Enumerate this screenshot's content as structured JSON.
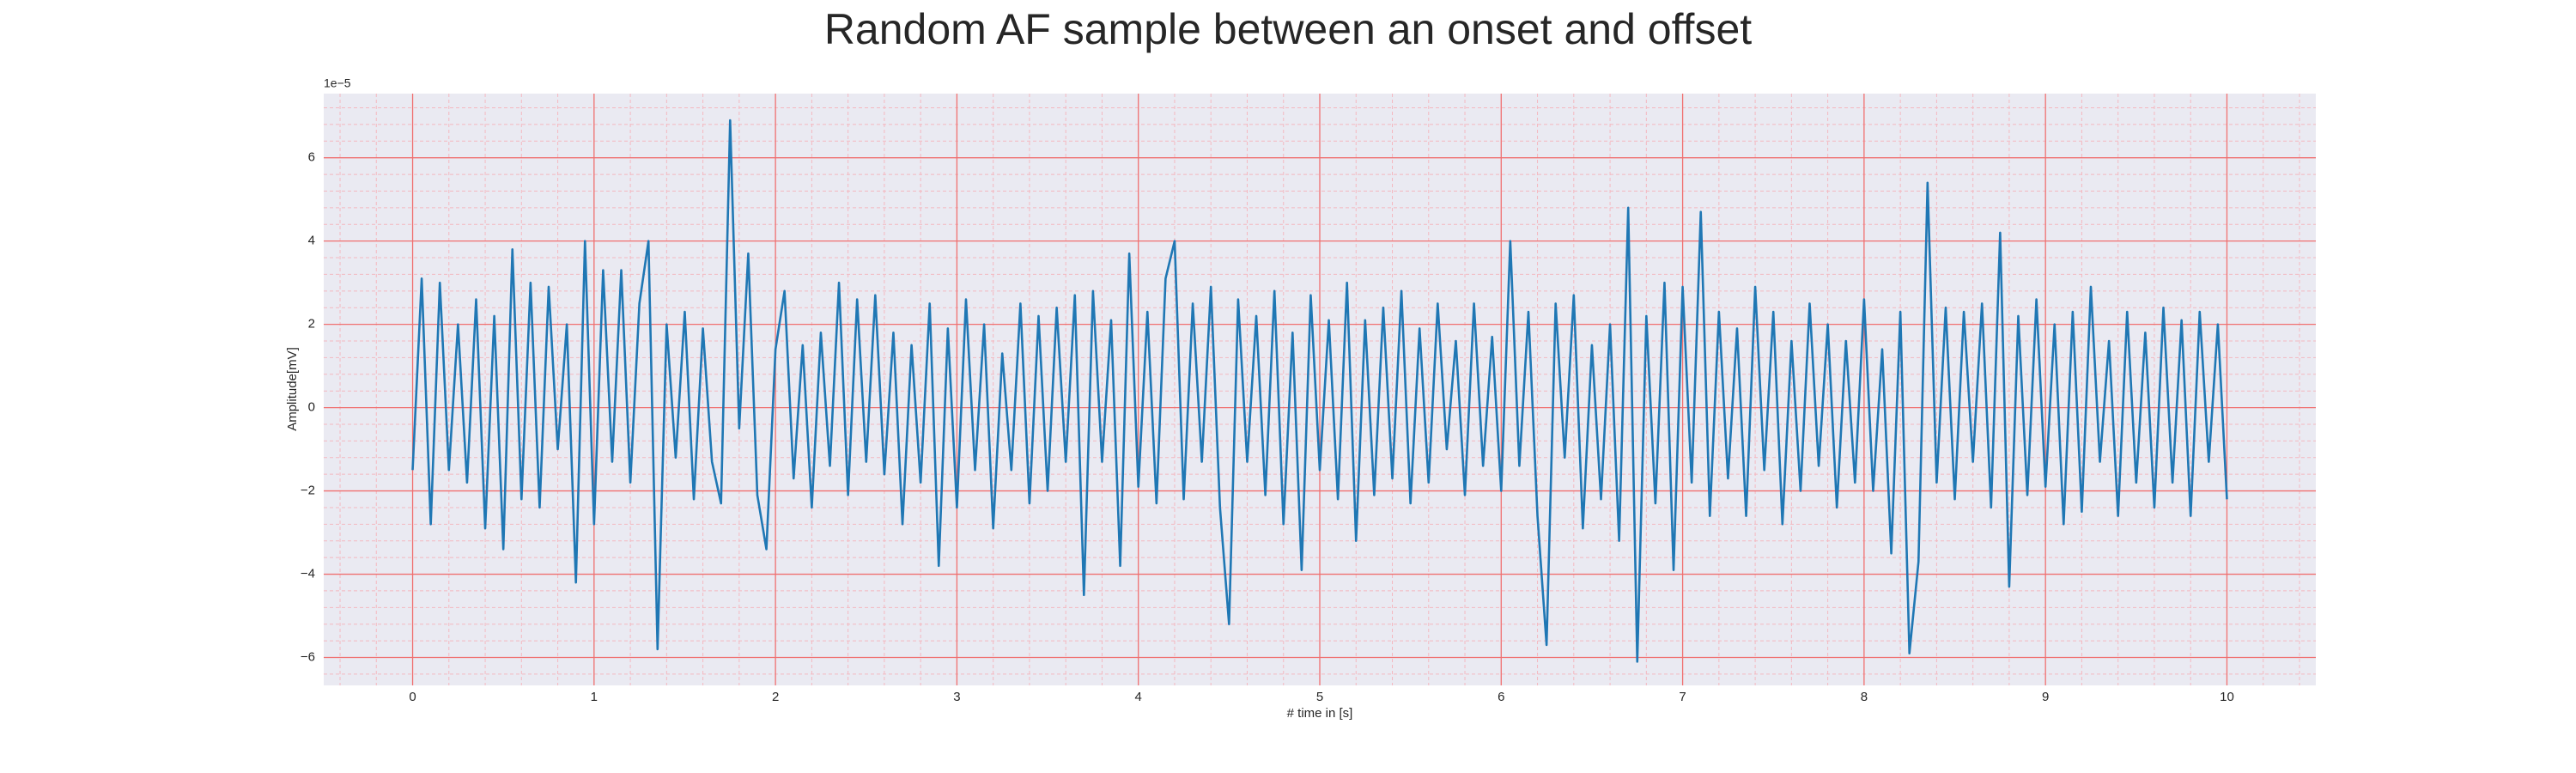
{
  "chart_data": {
    "type": "line",
    "title": "Random AF sample between an onset and offset",
    "xlabel": "# time in [s]",
    "ylabel": "Amplitude[mV]",
    "y_offset_label": "1e−5",
    "color": "#1f77b4",
    "grid": true,
    "minor_grid": true,
    "xlim": [
      -0.49,
      10.49
    ],
    "ylim": [
      -6.67,
      7.54
    ],
    "xticks": [
      0,
      1,
      2,
      3,
      4,
      5,
      6,
      7,
      8,
      9,
      10
    ],
    "yticks": [
      {
        "value": -6,
        "label": "−6"
      },
      {
        "value": -4,
        "label": "−4"
      },
      {
        "value": -2,
        "label": "−2"
      },
      0,
      2,
      4,
      6
    ],
    "xminorticks": [
      -0.4,
      -0.2,
      0.2,
      0.4,
      0.6,
      0.8,
      1.2,
      1.4,
      1.6,
      1.8,
      2.2,
      2.4,
      2.6,
      2.8,
      3.2,
      3.4,
      3.6,
      3.8,
      4.2,
      4.4,
      4.6,
      4.8,
      5.2,
      5.4,
      5.6,
      5.8,
      6.2,
      6.4,
      6.6,
      6.8,
      7.2,
      7.4,
      7.6,
      7.8,
      8.2,
      8.4,
      8.6,
      8.8,
      9.2,
      9.4,
      9.6,
      9.8,
      10.2,
      10.4
    ],
    "yminorticks": [
      -6.4,
      -5.6,
      -5.2,
      -4.8,
      -4.4,
      -3.6,
      -3.2,
      -2.8,
      -2.4,
      -1.6,
      -1.2,
      -0.8,
      -0.4,
      0.4,
      0.8,
      1.2,
      1.6,
      2.4,
      2.8,
      3.2,
      3.6,
      4.4,
      4.8,
      5.2,
      5.6,
      6.4,
      6.8,
      7.2
    ],
    "x": [
      0,
      0.05,
      0.1,
      0.15,
      0.2,
      0.25,
      0.3,
      0.35,
      0.4,
      0.45,
      0.5,
      0.55,
      0.6,
      0.65,
      0.7,
      0.75,
      0.8,
      0.85,
      0.9,
      0.95,
      1,
      1.05,
      1.1,
      1.15,
      1.2,
      1.25,
      1.3,
      1.35,
      1.4,
      1.45,
      1.5,
      1.55,
      1.6,
      1.65,
      1.7,
      1.75,
      1.8,
      1.85,
      1.9,
      1.95,
      2,
      2.05,
      2.1,
      2.15,
      2.2,
      2.25,
      2.3,
      2.35,
      2.4,
      2.45,
      2.5,
      2.55,
      2.6,
      2.65,
      2.7,
      2.75,
      2.8,
      2.85,
      2.9,
      2.95,
      3,
      3.05,
      3.1,
      3.15,
      3.2,
      3.25,
      3.3,
      3.35,
      3.4,
      3.45,
      3.5,
      3.55,
      3.6,
      3.65,
      3.7,
      3.75,
      3.8,
      3.85,
      3.9,
      3.95,
      4,
      4.05,
      4.1,
      4.15,
      4.2,
      4.25,
      4.3,
      4.35,
      4.4,
      4.45,
      4.5,
      4.55,
      4.6,
      4.65,
      4.7,
      4.75,
      4.8,
      4.85,
      4.9,
      4.95,
      5,
      5.05,
      5.1,
      5.15,
      5.2,
      5.25,
      5.3,
      5.35,
      5.4,
      5.45,
      5.5,
      5.55,
      5.6,
      5.65,
      5.7,
      5.75,
      5.8,
      5.85,
      5.9,
      5.95,
      6,
      6.05,
      6.1,
      6.15,
      6.2,
      6.25,
      6.3,
      6.35,
      6.4,
      6.45,
      6.5,
      6.55,
      6.6,
      6.65,
      6.7,
      6.75,
      6.8,
      6.85,
      6.9,
      6.95,
      7,
      7.05,
      7.1,
      7.15,
      7.2,
      7.25,
      7.3,
      7.35,
      7.4,
      7.45,
      7.5,
      7.55,
      7.6,
      7.65,
      7.7,
      7.75,
      7.8,
      7.85,
      7.9,
      7.95,
      8,
      8.05,
      8.1,
      8.15,
      8.2,
      8.25,
      8.3,
      8.35,
      8.4,
      8.45,
      8.5,
      8.55,
      8.6,
      8.65,
      8.7,
      8.75,
      8.8,
      8.85,
      8.9,
      8.95,
      9,
      9.05,
      9.1,
      9.15,
      9.2,
      9.25,
      9.3,
      9.35,
      9.4,
      9.45,
      9.5,
      9.55,
      9.6,
      9.65,
      9.7,
      9.75,
      9.8,
      9.85,
      9.9,
      9.95,
      10
    ],
    "values": [
      -1.5,
      3.1,
      -2.8,
      3.0,
      -1.5,
      2.0,
      -1.8,
      2.6,
      -2.9,
      2.2,
      -3.4,
      3.8,
      -2.2,
      3.0,
      -2.4,
      2.9,
      -1.0,
      2.0,
      -4.2,
      4.0,
      -2.8,
      3.3,
      -1.3,
      3.3,
      -1.8,
      2.5,
      4.0,
      -5.8,
      2.0,
      -1.2,
      2.3,
      -2.2,
      1.9,
      -1.3,
      -2.3,
      6.9,
      -0.5,
      3.7,
      -2.1,
      -3.4,
      1.4,
      2.8,
      -1.7,
      1.5,
      -2.4,
      1.8,
      -1.4,
      3.0,
      -2.1,
      2.6,
      -1.3,
      2.7,
      -1.6,
      1.8,
      -2.8,
      1.5,
      -1.8,
      2.5,
      -3.8,
      1.9,
      -2.4,
      2.6,
      -1.5,
      2.0,
      -2.9,
      1.3,
      -1.5,
      2.5,
      -2.3,
      2.2,
      -2.0,
      2.4,
      -1.3,
      2.7,
      -4.5,
      2.8,
      -1.3,
      2.1,
      -3.8,
      3.7,
      -1.9,
      2.3,
      -2.3,
      3.1,
      4.0,
      -2.2,
      2.5,
      -1.3,
      2.9,
      -2.4,
      -5.2,
      2.6,
      -1.3,
      2.2,
      -2.1,
      2.8,
      -2.8,
      1.8,
      -3.9,
      2.7,
      -1.5,
      2.1,
      -2.2,
      3.0,
      -3.2,
      2.1,
      -2.1,
      2.4,
      -1.7,
      2.8,
      -2.3,
      1.9,
      -1.8,
      2.5,
      -1.0,
      1.6,
      -2.1,
      2.5,
      -1.4,
      1.7,
      -2.0,
      4.0,
      -1.4,
      2.3,
      -2.6,
      -5.7,
      2.5,
      -1.2,
      2.7,
      -2.9,
      1.5,
      -2.2,
      2.0,
      -3.2,
      4.8,
      -6.1,
      2.2,
      -2.3,
      3.0,
      -3.9,
      2.9,
      -1.8,
      4.7,
      -2.6,
      2.3,
      -1.7,
      1.9,
      -2.6,
      2.9,
      -1.5,
      2.3,
      -2.8,
      1.6,
      -2.0,
      2.5,
      -1.4,
      2.0,
      -2.4,
      1.6,
      -1.8,
      2.6,
      -2.0,
      1.4,
      -3.5,
      2.3,
      -5.9,
      -3.7,
      5.4,
      -1.8,
      2.4,
      -2.2,
      2.3,
      -1.3,
      2.5,
      -2.4,
      4.2,
      -4.3,
      2.2,
      -2.1,
      2.6,
      -1.9,
      2.0,
      -2.8,
      2.3,
      -2.5,
      2.9,
      -1.3,
      1.6,
      -2.6,
      2.3,
      -1.8,
      1.8,
      -2.4,
      2.4,
      -1.8,
      2.1,
      -2.6,
      2.3,
      -1.3,
      2.0,
      -2.2
    ]
  }
}
